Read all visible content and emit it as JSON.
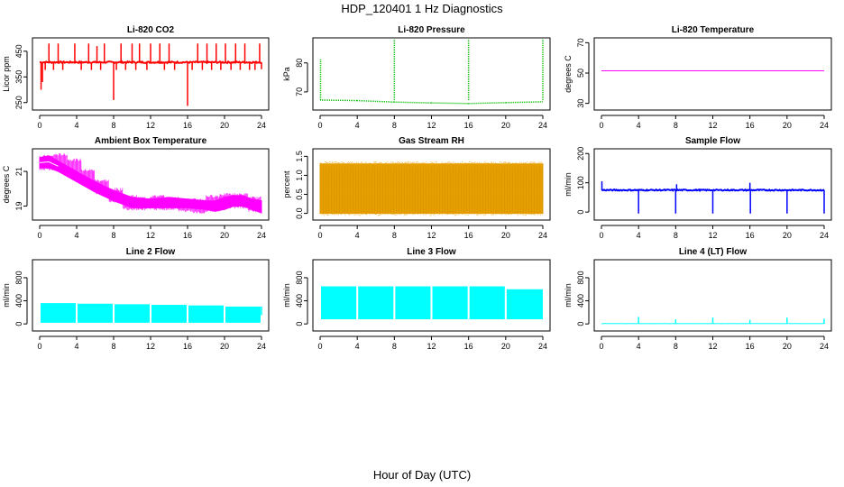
{
  "figure": {
    "title": "HDP_120401  1 Hz Diagnostics",
    "xlabel": "Hour of Day (UTC)"
  },
  "chart_data": [
    {
      "id": "co2",
      "type": "line",
      "title": "Li-820 CO2",
      "ylabel": "Licor ppm",
      "color": "#ff0000",
      "xlim": [
        0,
        24
      ],
      "xticks": [
        0,
        4,
        8,
        12,
        16,
        20,
        24
      ],
      "ylim": [
        235,
        495
      ],
      "yticks": [
        250,
        350,
        450
      ],
      "baseline": 407,
      "noise": 6,
      "spikes": [
        {
          "x": 0.15,
          "y": 300
        },
        {
          "x": 0.3,
          "y": 330
        },
        {
          "x": 1.0,
          "y": 480
        },
        {
          "x": 2.0,
          "y": 480
        },
        {
          "x": 3.8,
          "y": 480
        },
        {
          "x": 5.3,
          "y": 480
        },
        {
          "x": 6.2,
          "y": 470
        },
        {
          "x": 7.0,
          "y": 480
        },
        {
          "x": 8.0,
          "y": 260
        },
        {
          "x": 8.8,
          "y": 480
        },
        {
          "x": 10.0,
          "y": 480
        },
        {
          "x": 10.8,
          "y": 480
        },
        {
          "x": 12.0,
          "y": 480
        },
        {
          "x": 13.0,
          "y": 480
        },
        {
          "x": 14.0,
          "y": 480
        },
        {
          "x": 16.0,
          "y": 237
        },
        {
          "x": 17.1,
          "y": 480
        },
        {
          "x": 18.1,
          "y": 480
        },
        {
          "x": 19.1,
          "y": 480
        },
        {
          "x": 20.1,
          "y": 480
        },
        {
          "x": 21.2,
          "y": 480
        },
        {
          "x": 22.2,
          "y": 480
        },
        {
          "x": 23.8,
          "y": 480
        },
        {
          "x": 24.0,
          "y": 380
        }
      ],
      "dips": [
        0.6,
        1.5,
        2.5,
        4.5,
        5.6,
        6.6,
        8.3,
        9.3,
        10.4,
        11.6,
        13.5,
        14.6,
        16.5,
        17.6,
        18.6,
        19.6,
        20.7,
        21.7,
        22.7,
        23.3
      ]
    },
    {
      "id": "pressure",
      "type": "line",
      "title": "Li-820 Pressure",
      "ylabel": "kPa",
      "color": "#00bb00",
      "xlim": [
        0,
        24
      ],
      "xticks": [
        0,
        4,
        8,
        12,
        16,
        20,
        24
      ],
      "ylim": [
        65,
        88
      ],
      "yticks": [
        70,
        80
      ],
      "segments": [
        [
          0,
          67.2
        ],
        [
          4,
          67.0
        ],
        [
          8,
          66.5
        ],
        [
          12,
          66.2
        ],
        [
          16,
          66.0
        ],
        [
          20,
          66.3
        ],
        [
          24,
          66.6
        ]
      ],
      "spikes": [
        {
          "x": 0.05,
          "y": 81.5
        },
        {
          "x": 8.0,
          "y": 88
        },
        {
          "x": 16.0,
          "y": 88
        },
        {
          "x": 24.0,
          "y": 88
        }
      ]
    },
    {
      "id": "temperature",
      "type": "line",
      "title": "Li-820 Temperature",
      "ylabel": "degrees C",
      "color": "#ff00ff",
      "xlim": [
        0,
        24
      ],
      "xticks": [
        0,
        4,
        8,
        12,
        16,
        20,
        24
      ],
      "ylim": [
        28,
        72
      ],
      "yticks": [
        30,
        50,
        70
      ],
      "value": 51.5
    },
    {
      "id": "ambient",
      "type": "band",
      "title": "Ambient Box Temperature",
      "ylabel": "degrees C",
      "color": "#ff00ff",
      "xlim": [
        0,
        24
      ],
      "xticks": [
        0,
        4,
        8,
        12,
        16,
        20,
        24
      ],
      "ylim": [
        18.4,
        22.2
      ],
      "yticks": [
        19,
        21
      ],
      "upper": [
        [
          0,
          21.8
        ],
        [
          1,
          21.9
        ],
        [
          2,
          21.6
        ],
        [
          4,
          21.0
        ],
        [
          6,
          20.4
        ],
        [
          8,
          19.9
        ],
        [
          10,
          19.5
        ],
        [
          12,
          19.4
        ],
        [
          14,
          19.5
        ],
        [
          16,
          19.4
        ],
        [
          18,
          19.3
        ],
        [
          19,
          19.3
        ],
        [
          20,
          19.5
        ],
        [
          21,
          19.6
        ],
        [
          22,
          19.6
        ],
        [
          23,
          19.4
        ],
        [
          24,
          19.3
        ]
      ],
      "lower": [
        [
          0,
          21.2
        ],
        [
          1,
          21.2
        ],
        [
          2,
          21.0
        ],
        [
          4,
          20.4
        ],
        [
          6,
          19.8
        ],
        [
          8,
          19.3
        ],
        [
          10,
          18.9
        ],
        [
          12,
          18.9
        ],
        [
          14,
          18.9
        ],
        [
          16,
          18.9
        ],
        [
          18,
          18.8
        ],
        [
          19,
          18.7
        ],
        [
          20,
          18.8
        ],
        [
          21,
          19.0
        ],
        [
          22,
          19.0
        ],
        [
          23,
          18.8
        ],
        [
          24,
          18.6
        ]
      ],
      "whiteline": [
        [
          0,
          21.5
        ],
        [
          1,
          21.55
        ],
        [
          2,
          21.3
        ]
      ]
    },
    {
      "id": "rh",
      "type": "band",
      "title": "Gas Stream RH",
      "ylabel": "percent",
      "color": "#e69f00",
      "xlim": [
        0,
        24
      ],
      "xticks": [
        0,
        4,
        8,
        12,
        16,
        20,
        24
      ],
      "ylim": [
        -0.08,
        1.65
      ],
      "yticks": [
        0.0,
        0.5,
        1.0,
        1.5
      ],
      "upper": [
        [
          0,
          1.3
        ],
        [
          4,
          1.3
        ],
        [
          8,
          1.3
        ],
        [
          12,
          1.3
        ],
        [
          16,
          1.3
        ],
        [
          20,
          1.3
        ],
        [
          24,
          1.3
        ]
      ],
      "lower": [
        [
          0,
          0.0
        ],
        [
          4,
          0.0
        ],
        [
          8,
          0.0
        ],
        [
          12,
          0.0
        ],
        [
          16,
          0.0
        ],
        [
          20,
          0.0
        ],
        [
          24,
          0.0
        ]
      ],
      "whiteline": [],
      "dotted": true
    },
    {
      "id": "sample",
      "type": "line",
      "title": "Sample Flow",
      "ylabel": "ml/min",
      "color": "#0000ff",
      "xlim": [
        0,
        24
      ],
      "xticks": [
        0,
        4,
        8,
        12,
        16,
        20,
        24
      ],
      "ylim": [
        -15,
        210
      ],
      "yticks": [
        0,
        100,
        200
      ],
      "baseline": 75,
      "noise": 4,
      "spikes": [
        {
          "x": 0.05,
          "y": 105
        },
        {
          "x": 4.0,
          "y": -5
        },
        {
          "x": 8.0,
          "y": -5
        },
        {
          "x": 8.1,
          "y": 95
        },
        {
          "x": 12.0,
          "y": -5
        },
        {
          "x": 16.0,
          "y": 100
        },
        {
          "x": 16.05,
          "y": -5
        },
        {
          "x": 20.0,
          "y": -5
        },
        {
          "x": 24.0,
          "y": -5
        }
      ],
      "dips": []
    },
    {
      "id": "line2",
      "type": "block",
      "title": "Line 2 Flow",
      "ylabel": "ml/min",
      "color": "#00ffff",
      "xlim": [
        0,
        24
      ],
      "xticks": [
        0,
        4,
        8,
        12,
        16,
        20,
        24
      ],
      "ylim": [
        -60,
        1080
      ],
      "yticks": [
        0,
        400,
        800
      ],
      "blocks": [
        [
          0.1,
          3.9,
          20,
          360
        ],
        [
          4.1,
          7.9,
          20,
          350
        ],
        [
          8.1,
          11.9,
          20,
          340
        ],
        [
          12.1,
          15.9,
          20,
          330
        ],
        [
          16.1,
          19.9,
          20,
          320
        ],
        [
          20.1,
          23.9,
          20,
          300
        ]
      ],
      "tail": [
        24.0,
        150,
        300
      ]
    },
    {
      "id": "line3",
      "type": "block",
      "title": "Line 3 Flow",
      "ylabel": "ml/min",
      "color": "#00ffff",
      "xlim": [
        0,
        24
      ],
      "xticks": [
        0,
        4,
        8,
        12,
        16,
        20,
        24
      ],
      "ylim": [
        -60,
        1080
      ],
      "yticks": [
        0,
        400,
        800
      ],
      "blocks": [
        [
          0.1,
          3.9,
          80,
          650
        ],
        [
          4.1,
          7.9,
          80,
          650
        ],
        [
          8.1,
          11.9,
          80,
          650
        ],
        [
          12.1,
          15.9,
          80,
          650
        ],
        [
          16.1,
          19.9,
          80,
          650
        ],
        [
          20.1,
          24.0,
          80,
          600
        ]
      ],
      "tail": null
    },
    {
      "id": "line4",
      "type": "line",
      "title": "Line 4 (LT) Flow",
      "ylabel": "ml/min",
      "color": "#00ffff",
      "xlim": [
        0,
        24
      ],
      "xticks": [
        0,
        4,
        8,
        12,
        16,
        20,
        24
      ],
      "ylim": [
        -60,
        1080
      ],
      "yticks": [
        0,
        400,
        800
      ],
      "baseline": 5,
      "noise": 2,
      "spikes": [
        {
          "x": 4.0,
          "y": 120
        },
        {
          "x": 8.0,
          "y": 80
        },
        {
          "x": 12.0,
          "y": 110
        },
        {
          "x": 16.0,
          "y": 70
        },
        {
          "x": 20.0,
          "y": 110
        },
        {
          "x": 24.0,
          "y": 90
        }
      ],
      "dips": []
    }
  ]
}
